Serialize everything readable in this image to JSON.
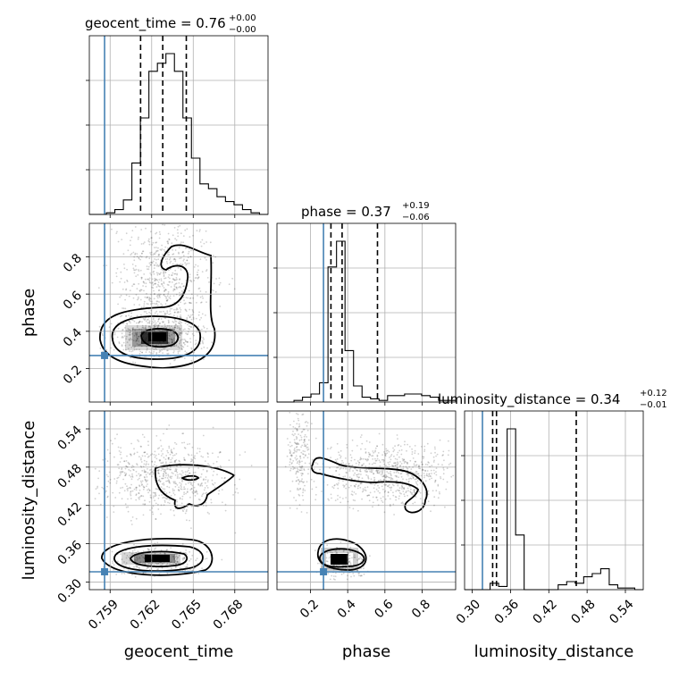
{
  "colors": {
    "truth": "#4682b4",
    "grid": "#b0b0b0",
    "ink": "#000000"
  },
  "chart_data": {
    "type": "corner",
    "parameters": [
      "geocent_time",
      "phase",
      "luminosity_distance"
    ],
    "axis_labels": {
      "x": [
        "geocent_time",
        "phase",
        "luminosity_distance"
      ],
      "y": [
        "phase",
        "luminosity_distance"
      ]
    },
    "titles": [
      {
        "param": "geocent_time",
        "text": "geocent_time = 0.76",
        "plus": "+0.00",
        "minus": "−0.00"
      },
      {
        "param": "phase",
        "text": "phase = 0.37",
        "plus": "+0.19",
        "minus": "−0.06"
      },
      {
        "param": "luminosity_distance",
        "text": "luminosity_distance = 0.34",
        "plus": "+0.12",
        "minus": "−0.01"
      }
    ],
    "ranges": {
      "geocent_time": [
        0.7575,
        0.7704
      ],
      "phase": [
        0.02,
        0.98
      ],
      "luminosity_distance": [
        0.288,
        0.568
      ]
    },
    "ticks": {
      "geocent_time": {
        "values": [
          0.759,
          0.762,
          0.765,
          0.768
        ],
        "labels": [
          "0.759",
          "0.762",
          "0.765",
          "0.768"
        ]
      },
      "phase_x": {
        "values": [
          0.2,
          0.4,
          0.6,
          0.8
        ],
        "labels": [
          "0.2",
          "0.4",
          "0.6",
          "0.8"
        ]
      },
      "phase_y": {
        "values": [
          0.2,
          0.4,
          0.6,
          0.8
        ],
        "labels": [
          "0.2",
          "0.4",
          "0.6",
          "0.8"
        ]
      },
      "luminosity_distance": {
        "values": [
          0.3,
          0.36,
          0.42,
          0.48,
          0.54
        ],
        "labels": [
          "0.30",
          "0.36",
          "0.42",
          "0.48",
          "0.54"
        ]
      }
    },
    "truths": {
      "geocent_time": 0.7586,
      "phase": 0.27,
      "luminosity_distance": 0.316
    },
    "quantiles": {
      "geocent_time": [
        0.7612,
        0.7628,
        0.7645
      ],
      "phase": [
        0.31,
        0.37,
        0.56
      ],
      "luminosity_distance": [
        0.332,
        0.338,
        0.463
      ]
    },
    "histograms": {
      "geocent_time": {
        "range": [
          0.7575,
          0.7704
        ],
        "counts": [
          0,
          0,
          1,
          3,
          9,
          32,
          60,
          89,
          94,
          100,
          89,
          60,
          35,
          19,
          16,
          11,
          8,
          6,
          3,
          1,
          0
        ]
      },
      "phase": {
        "range": [
          0.02,
          0.98
        ],
        "counts": [
          0,
          0,
          1,
          3,
          5,
          12,
          84,
          100,
          32,
          10,
          3,
          2,
          1,
          4,
          4,
          5,
          5,
          4,
          3,
          1,
          1
        ]
      },
      "luminosity_distance": {
        "range": [
          0.288,
          0.568
        ],
        "counts": [
          0,
          0,
          0,
          4,
          2,
          100,
          34,
          0,
          0,
          0,
          0,
          3,
          5,
          4,
          8,
          10,
          13,
          3,
          1,
          1,
          0
        ]
      }
    }
  }
}
